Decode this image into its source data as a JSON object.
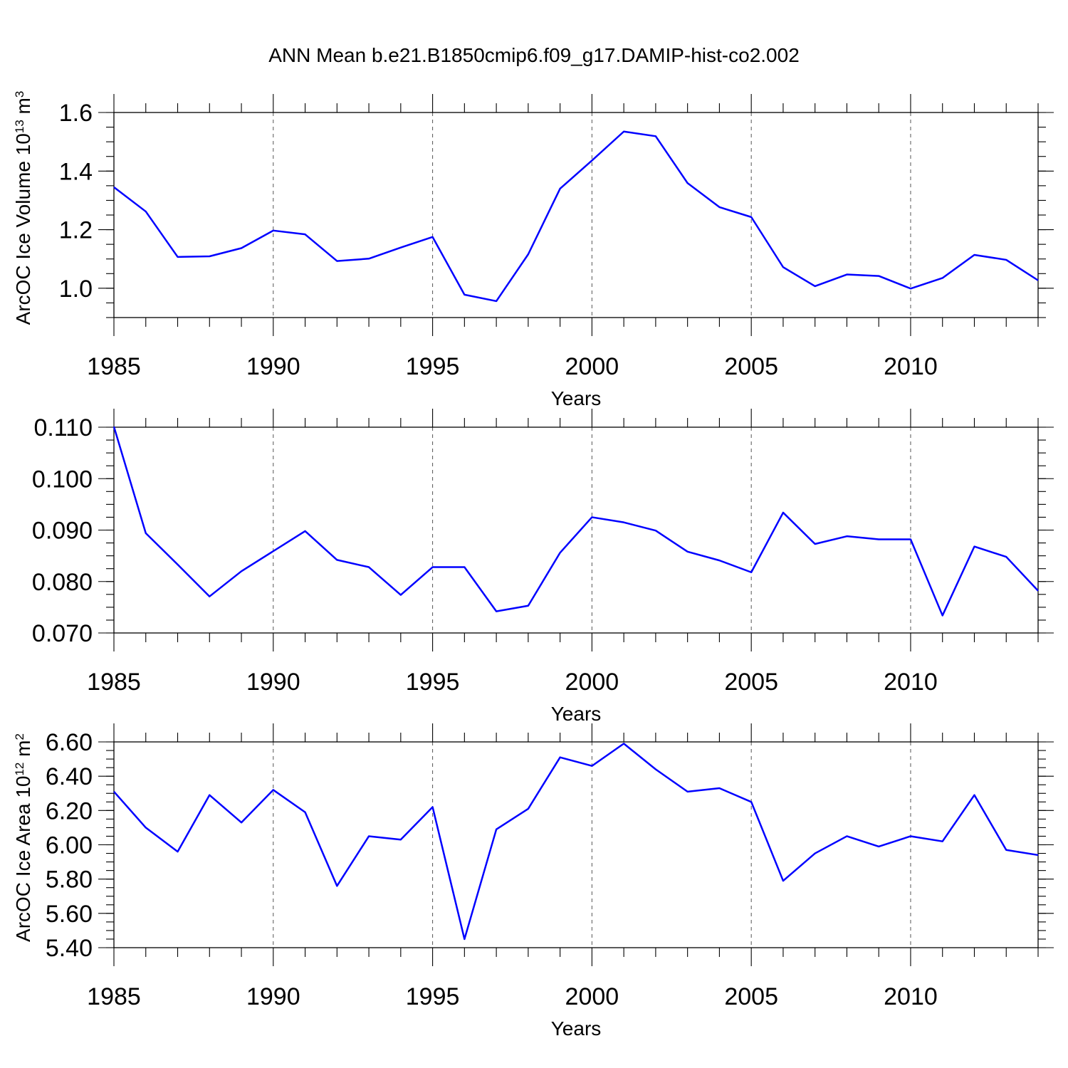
{
  "title": "ANN Mean b.e21.B1850cmip6.f09_g17.DAMIP-hist-co2.002",
  "chart_data": [
    {
      "type": "line",
      "title": "ANN Mean b.e21.B1850cmip6.f09_g17.DAMIP-hist-co2.002",
      "xlabel": "Years",
      "ylabel": "ArcOC Ice Volume 10",
      "ylabel_exp": "13",
      "ylabel_unit": " m",
      "ylabel_unit_exp": "3",
      "xlim": [
        1985,
        2014
      ],
      "ylim": [
        0.9,
        1.6
      ],
      "xticks": [
        "1985",
        "1990",
        "1995",
        "2000",
        "2005",
        "2010"
      ],
      "yticks": [
        "1.0",
        "1.2",
        "1.4",
        "1.6"
      ],
      "grid": "vertical dashed at major x ticks",
      "color": "#0000ff",
      "x": [
        1985,
        1986,
        1987,
        1988,
        1989,
        1990,
        1991,
        1992,
        1993,
        1994,
        1995,
        1996,
        1997,
        1998,
        1999,
        2000,
        2001,
        2002,
        2003,
        2004,
        2005,
        2006,
        2007,
        2008,
        2009,
        2010,
        2011,
        2012,
        2013,
        2014
      ],
      "values": [
        1.345,
        1.262,
        1.107,
        1.109,
        1.137,
        1.197,
        1.184,
        1.093,
        1.101,
        1.139,
        1.175,
        0.978,
        0.956,
        1.116,
        1.34,
        1.436,
        1.535,
        1.519,
        1.359,
        1.277,
        1.243,
        1.072,
        1.007,
        1.047,
        1.042,
        0.999,
        1.035,
        1.114,
        1.097,
        1.027
      ]
    },
    {
      "type": "line",
      "xlabel": "Years",
      "xlim": [
        1985,
        2014
      ],
      "ylim": [
        0.07,
        0.11
      ],
      "xticks": [
        "1985",
        "1990",
        "1995",
        "2000",
        "2005",
        "2010"
      ],
      "yticks": [
        "0.070",
        "0.080",
        "0.090",
        "0.100",
        "0.110"
      ],
      "grid": "vertical dashed at major x ticks",
      "color": "#0000ff",
      "x": [
        1985,
        1986,
        1987,
        1988,
        1989,
        1990,
        1991,
        1992,
        1993,
        1994,
        1995,
        1996,
        1997,
        1998,
        1999,
        2000,
        2001,
        2002,
        2003,
        2004,
        2005,
        2006,
        2007,
        2008,
        2009,
        2010,
        2011,
        2012,
        2013,
        2014
      ],
      "values": [
        0.1101,
        0.0894,
        0.0833,
        0.0771,
        0.082,
        0.0859,
        0.0898,
        0.0842,
        0.0828,
        0.0774,
        0.0828,
        0.0828,
        0.0742,
        0.0753,
        0.0856,
        0.0925,
        0.0915,
        0.0899,
        0.0858,
        0.0841,
        0.0818,
        0.0934,
        0.0873,
        0.0888,
        0.0882,
        0.0882,
        0.0734,
        0.0868,
        0.0848,
        0.0782
      ]
    },
    {
      "type": "line",
      "xlabel": "Years",
      "ylabel": "ArcOC Ice Area 10",
      "ylabel_exp": "12",
      "ylabel_unit": " m",
      "ylabel_unit_exp": "2",
      "xlim": [
        1985,
        2014
      ],
      "ylim": [
        5.4,
        6.6
      ],
      "xticks": [
        "1985",
        "1990",
        "1995",
        "2000",
        "2005",
        "2010"
      ],
      "yticks": [
        "5.40",
        "5.60",
        "5.80",
        "6.00",
        "6.20",
        "6.40",
        "6.60"
      ],
      "grid": "vertical dashed at major x ticks",
      "color": "#0000ff",
      "x": [
        1985,
        1986,
        1987,
        1988,
        1989,
        1990,
        1991,
        1992,
        1993,
        1994,
        1995,
        1996,
        1997,
        1998,
        1999,
        2000,
        2001,
        2002,
        2003,
        2004,
        2005,
        2006,
        2007,
        2008,
        2009,
        2010,
        2011,
        2012,
        2013,
        2014
      ],
      "values": [
        6.31,
        6.1,
        5.96,
        6.29,
        6.13,
        6.32,
        6.19,
        5.76,
        6.05,
        6.03,
        6.22,
        5.45,
        6.09,
        6.21,
        6.51,
        6.46,
        6.59,
        6.44,
        6.31,
        6.33,
        6.25,
        5.79,
        5.95,
        6.05,
        5.99,
        6.05,
        6.02,
        6.29,
        5.97,
        5.94
      ]
    }
  ]
}
